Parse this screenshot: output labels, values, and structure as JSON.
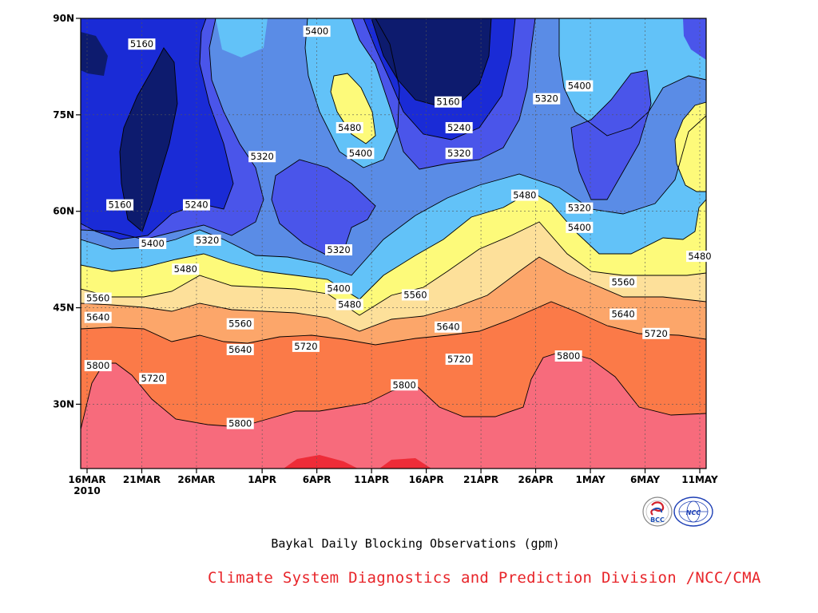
{
  "chart_data": {
    "type": "heatmap",
    "subtype": "filled-contour",
    "title": "Baykal Daily Blocking Observations (gpm)",
    "x_axis": {
      "ticks": [
        "16MAR",
        "21MAR",
        "26MAR",
        "1APR",
        "6APR",
        "11APR",
        "16APR",
        "21APR",
        "26APR",
        "1MAY",
        "6MAY",
        "11MAY"
      ],
      "year_label": "2010",
      "range": [
        "2010-03-16",
        "2010-05-11"
      ]
    },
    "y_axis": {
      "ticks": [
        "30N",
        "45N",
        "60N",
        "75N",
        "90N"
      ],
      "range": [
        20,
        90
      ]
    },
    "grid": true,
    "contour_levels": [
      5160,
      5240,
      5320,
      5400,
      5480,
      5560,
      5640,
      5720,
      5800,
      5880
    ],
    "level_colors": {
      "below_5160": "#0d1b6e",
      "5160_5240": "#1a2bd6",
      "5240_5320": "#4a55ea",
      "5320_5400": "#5a8ce6",
      "5400_5480": "#62c2f8",
      "5480_5560": "#fdfa7a",
      "5560_5640": "#fde09a",
      "5640_5720": "#fca66a",
      "5720_5800": "#fb7a48",
      "5800_5880": "#f76b7c",
      "above_5880": "#ee2c38"
    },
    "contour_labels": [
      {
        "value": "5160",
        "date": "2010-03-21",
        "lat": 86
      },
      {
        "value": "5160",
        "date": "2010-03-19",
        "lat": 61
      },
      {
        "value": "5240",
        "date": "2010-03-26",
        "lat": 61
      },
      {
        "value": "5320",
        "date": "2010-03-27",
        "lat": 55.5
      },
      {
        "value": "5400",
        "date": "2010-03-22",
        "lat": 55
      },
      {
        "value": "5480",
        "date": "2010-03-25",
        "lat": 51
      },
      {
        "value": "5560",
        "date": "2010-03-17",
        "lat": 46.5
      },
      {
        "value": "5640",
        "date": "2010-03-17",
        "lat": 43.5
      },
      {
        "value": "5800",
        "date": "2010-03-17",
        "lat": 36
      },
      {
        "value": "5720",
        "date": "2010-03-22",
        "lat": 34
      },
      {
        "value": "5560",
        "date": "2010-03-30",
        "lat": 42.5
      },
      {
        "value": "5640",
        "date": "2010-03-30",
        "lat": 38.5
      },
      {
        "value": "5800",
        "date": "2010-03-30",
        "lat": 27
      },
      {
        "value": "5720",
        "date": "2010-04-05",
        "lat": 39
      },
      {
        "value": "5320",
        "date": "2010-04-01",
        "lat": 68.5
      },
      {
        "value": "5400",
        "date": "2010-04-06",
        "lat": 88
      },
      {
        "value": "5480",
        "date": "2010-04-09",
        "lat": 73
      },
      {
        "value": "5400",
        "date": "2010-04-10",
        "lat": 69
      },
      {
        "value": "5320",
        "date": "2010-04-08",
        "lat": 54
      },
      {
        "value": "5400",
        "date": "2010-04-08",
        "lat": 48
      },
      {
        "value": "5480",
        "date": "2010-04-09",
        "lat": 45.5
      },
      {
        "value": "5160",
        "date": "2010-04-18",
        "lat": 77
      },
      {
        "value": "5240",
        "date": "2010-04-19",
        "lat": 73
      },
      {
        "value": "5320",
        "date": "2010-04-19",
        "lat": 69
      },
      {
        "value": "5560",
        "date": "2010-04-15",
        "lat": 47
      },
      {
        "value": "5640",
        "date": "2010-04-18",
        "lat": 42
      },
      {
        "value": "5720",
        "date": "2010-04-19",
        "lat": 37
      },
      {
        "value": "5800",
        "date": "2010-04-14",
        "lat": 33
      },
      {
        "value": "5320",
        "date": "2010-04-27",
        "lat": 77.5
      },
      {
        "value": "5480",
        "date": "2010-04-25",
        "lat": 62.5
      },
      {
        "value": "5400",
        "date": "2010-04-30",
        "lat": 79.5
      },
      {
        "value": "5320",
        "date": "2010-04-30",
        "lat": 60.5
      },
      {
        "value": "5400",
        "date": "2010-04-30",
        "lat": 57.5
      },
      {
        "value": "5560",
        "date": "2010-05-04",
        "lat": 49
      },
      {
        "value": "5640",
        "date": "2010-05-04",
        "lat": 44
      },
      {
        "value": "5800",
        "date": "2010-04-29",
        "lat": 37.5
      },
      {
        "value": "5720",
        "date": "2010-05-07",
        "lat": 41
      },
      {
        "value": "5480",
        "date": "2010-05-11",
        "lat": 53
      }
    ]
  },
  "caption": "Baykal Daily Blocking Observations (gpm)",
  "footer": "Climate System Diagnostics and Prediction Division /NCC/CMA",
  "logos": [
    {
      "name": "bcc-logo",
      "text": "BCC"
    },
    {
      "name": "ncc-logo",
      "text": "NCC"
    }
  ]
}
